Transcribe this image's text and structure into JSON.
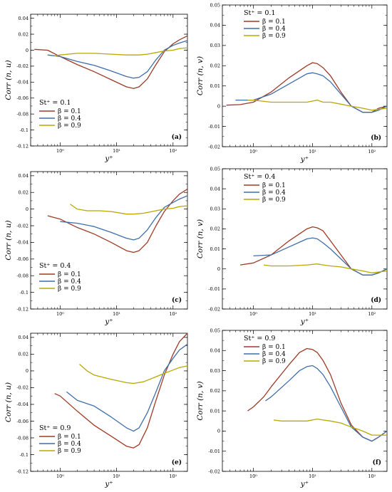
{
  "colors": {
    "red": "#9e3a26",
    "blue": "#3f6ea8",
    "yellow": "#b8a800"
  },
  "chart_data": [
    {
      "id": "a",
      "type": "line",
      "panel_label": "(a)",
      "legend_title": "St⁺ = 0.1",
      "legend_position": "bottom-left",
      "xlabel": "y⁺",
      "ylabel": "Corr (n, u)",
      "xscale": "log",
      "xlim": [
        0.3,
        180
      ],
      "ylim": [
        -0.12,
        0.045
      ],
      "xticks": [
        {
          "v": 1,
          "label": "10⁰"
        },
        {
          "v": 10,
          "label": "10¹"
        },
        {
          "v": 100,
          "label": "10²"
        }
      ],
      "yticks": [
        {
          "v": 0.04,
          "label": "0.04"
        },
        {
          "v": 0.02,
          "label": "0.02"
        },
        {
          "v": 0,
          "label": "0"
        },
        {
          "v": -0.02,
          "label": "-0.02"
        },
        {
          "v": -0.04,
          "label": "-0.04"
        },
        {
          "v": -0.06,
          "label": "-0.06"
        },
        {
          "v": -0.08,
          "label": "-0.08"
        },
        {
          "v": -0.1,
          "label": "-0.1"
        },
        {
          "v": -0.12,
          "label": "-0.12"
        }
      ],
      "series": [
        {
          "name": "β = 0.1",
          "color": "red",
          "x": [
            0.35,
            0.6,
            1,
            2,
            4,
            8,
            15,
            20,
            25,
            35,
            50,
            70,
            100,
            130,
            180
          ],
          "y": [
            0.001,
            0.0,
            -0.008,
            -0.018,
            -0.027,
            -0.037,
            -0.046,
            -0.048,
            -0.046,
            -0.036,
            -0.018,
            -0.002,
            0.008,
            0.013,
            0.018
          ]
        },
        {
          "name": "β = 0.4",
          "color": "blue",
          "x": [
            0.6,
            1,
            2,
            4,
            8,
            15,
            20,
            25,
            35,
            50,
            70,
            100,
            130,
            180
          ],
          "y": [
            -0.006,
            -0.008,
            -0.014,
            -0.019,
            -0.026,
            -0.033,
            -0.035,
            -0.034,
            -0.027,
            -0.012,
            0.0,
            0.006,
            0.009,
            0.012
          ]
        },
        {
          "name": "β = 0.9",
          "color": "yellow",
          "x": [
            0.8,
            1,
            2,
            4,
            8,
            15,
            20,
            25,
            35,
            50,
            70,
            100,
            130,
            180
          ],
          "y": [
            -0.007,
            -0.006,
            -0.004,
            -0.004,
            -0.005,
            -0.006,
            -0.006,
            -0.006,
            -0.005,
            -0.003,
            -0.001,
            0.0,
            0.002,
            0.003
          ]
        }
      ]
    },
    {
      "id": "b",
      "type": "line",
      "panel_label": "(b)",
      "legend_title": "St⁺ = 0.1",
      "legend_position": "top-left",
      "xlabel": "y⁺",
      "ylabel": "Corr (n, v)",
      "xscale": "log",
      "xlim": [
        0.3,
        180
      ],
      "ylim": [
        -0.02,
        0.05
      ],
      "xticks": [
        {
          "v": 1,
          "label": "10⁰"
        },
        {
          "v": 10,
          "label": "10¹"
        },
        {
          "v": 100,
          "label": "10²"
        }
      ],
      "yticks": [
        {
          "v": 0.05,
          "label": "0.05"
        },
        {
          "v": 0.04,
          "label": "0.04"
        },
        {
          "v": 0.03,
          "label": "0.03"
        },
        {
          "v": 0.02,
          "label": "0.02"
        },
        {
          "v": 0.01,
          "label": "0.01"
        },
        {
          "v": 0,
          "label": "0"
        },
        {
          "v": -0.01,
          "label": "-0.01"
        },
        {
          "v": -0.02,
          "label": "-0.02"
        }
      ],
      "series": [
        {
          "name": "β = 0.1",
          "color": "red",
          "x": [
            0.35,
            0.6,
            1,
            2,
            4,
            8,
            10,
            12,
            15,
            20,
            30,
            45,
            70,
            100,
            130,
            180
          ],
          "y": [
            0.0005,
            0.0008,
            0.002,
            0.007,
            0.014,
            0.02,
            0.0215,
            0.021,
            0.019,
            0.015,
            0.007,
            0.0,
            -0.003,
            -0.003,
            -0.001,
            0.0
          ]
        },
        {
          "name": "β = 0.4",
          "color": "blue",
          "x": [
            0.5,
            1,
            2,
            4,
            8,
            10,
            12,
            15,
            20,
            30,
            45,
            70,
            100,
            130,
            180
          ],
          "y": [
            0.003,
            0.003,
            0.006,
            0.011,
            0.016,
            0.0165,
            0.016,
            0.015,
            0.012,
            0.006,
            0.0,
            -0.003,
            -0.003,
            -0.002,
            0.0
          ]
        },
        {
          "name": "β = 0.9",
          "color": "yellow",
          "x": [
            0.8,
            1,
            2,
            4,
            8,
            12,
            15,
            20,
            30,
            45,
            70,
            100,
            180
          ],
          "y": [
            0.003,
            0.003,
            0.002,
            0.002,
            0.002,
            0.003,
            0.002,
            0.002,
            0.001,
            0.0,
            -0.001,
            -0.002,
            -0.001
          ]
        }
      ]
    },
    {
      "id": "c",
      "type": "line",
      "panel_label": "(c)",
      "legend_title": "St⁺ = 0.4",
      "legend_position": "bottom-left",
      "xlabel": "y⁺",
      "ylabel": "Corr (n, u)",
      "xscale": "log",
      "xlim": [
        0.3,
        180
      ],
      "ylim": [
        -0.12,
        0.045
      ],
      "xticks": [
        {
          "v": 1,
          "label": "10⁰"
        },
        {
          "v": 10,
          "label": "10¹"
        },
        {
          "v": 100,
          "label": "10²"
        }
      ],
      "yticks": [
        {
          "v": 0.04,
          "label": "0.04"
        },
        {
          "v": 0.02,
          "label": "0.02"
        },
        {
          "v": 0,
          "label": "0"
        },
        {
          "v": -0.02,
          "label": "-0.02"
        },
        {
          "v": -0.04,
          "label": "-0.04"
        },
        {
          "v": -0.06,
          "label": "-0.06"
        },
        {
          "v": -0.08,
          "label": "-0.08"
        },
        {
          "v": -0.1,
          "label": "-0.1"
        },
        {
          "v": -0.12,
          "label": "-0.12"
        }
      ],
      "series": [
        {
          "name": "β = 0.1",
          "color": "red",
          "x": [
            0.6,
            1,
            2,
            4,
            8,
            15,
            20,
            25,
            35,
            50,
            70,
            100,
            130,
            180
          ],
          "y": [
            -0.008,
            -0.012,
            -0.022,
            -0.03,
            -0.04,
            -0.05,
            -0.052,
            -0.05,
            -0.04,
            -0.02,
            -0.003,
            0.01,
            0.018,
            0.024
          ]
        },
        {
          "name": "β = 0.4",
          "color": "blue",
          "x": [
            1,
            2,
            4,
            8,
            15,
            20,
            25,
            35,
            50,
            70,
            100,
            130,
            180
          ],
          "y": [
            -0.015,
            -0.017,
            -0.021,
            -0.028,
            -0.035,
            -0.037,
            -0.035,
            -0.025,
            -0.01,
            0.002,
            0.008,
            0.012,
            0.016
          ]
        },
        {
          "name": "β = 0.9",
          "color": "yellow",
          "x": [
            1.5,
            2,
            3,
            5,
            8,
            15,
            20,
            30,
            50,
            70,
            100,
            130,
            180
          ],
          "y": [
            0.006,
            0.0,
            -0.002,
            -0.002,
            -0.003,
            -0.006,
            -0.006,
            -0.005,
            -0.002,
            0.0,
            0.001,
            0.003,
            0.004
          ]
        }
      ]
    },
    {
      "id": "d",
      "type": "line",
      "panel_label": "(d)",
      "legend_title": "St⁺ = 0.4",
      "legend_position": "top-left",
      "xlabel": "y⁺",
      "ylabel": "Corr (n, v)",
      "xscale": "log",
      "xlim": [
        0.3,
        180
      ],
      "ylim": [
        -0.02,
        0.05
      ],
      "xticks": [
        {
          "v": 1,
          "label": "10⁰"
        },
        {
          "v": 10,
          "label": "10¹"
        },
        {
          "v": 100,
          "label": "10²"
        }
      ],
      "yticks": [
        {
          "v": 0.05,
          "label": "0.05"
        },
        {
          "v": 0.04,
          "label": "0.04"
        },
        {
          "v": 0.03,
          "label": "0.03"
        },
        {
          "v": 0.02,
          "label": "0.02"
        },
        {
          "v": 0.01,
          "label": "0.01"
        },
        {
          "v": 0,
          "label": "0"
        },
        {
          "v": -0.01,
          "label": "-0.01"
        },
        {
          "v": -0.02,
          "label": "-0.02"
        }
      ],
      "series": [
        {
          "name": "β = 0.1",
          "color": "red",
          "x": [
            0.6,
            1,
            2,
            4,
            8,
            10,
            12,
            15,
            20,
            30,
            45,
            70,
            100,
            130,
            180
          ],
          "y": [
            0.002,
            0.003,
            0.007,
            0.014,
            0.02,
            0.021,
            0.0205,
            0.019,
            0.014,
            0.007,
            0.0,
            -0.003,
            -0.003,
            -0.002,
            0.0
          ]
        },
        {
          "name": "β = 0.4",
          "color": "blue",
          "x": [
            1,
            2,
            4,
            8,
            10,
            12,
            15,
            20,
            30,
            45,
            70,
            100,
            130,
            180
          ],
          "y": [
            0.0065,
            0.007,
            0.011,
            0.015,
            0.0155,
            0.015,
            0.013,
            0.01,
            0.005,
            0.0,
            -0.003,
            -0.003,
            -0.002,
            0.0
          ]
        },
        {
          "name": "β = 0.9",
          "color": "yellow",
          "x": [
            1.5,
            2,
            4,
            8,
            12,
            15,
            20,
            30,
            45,
            70,
            100,
            180
          ],
          "y": [
            0.002,
            0.0015,
            0.0015,
            0.002,
            0.0025,
            0.002,
            0.0015,
            0.001,
            0.0,
            -0.001,
            -0.002,
            -0.001
          ]
        }
      ]
    },
    {
      "id": "e",
      "type": "line",
      "panel_label": "(e)",
      "legend_title": "St⁺ = 0.9",
      "legend_position": "bottom-left",
      "xlabel": "y⁺",
      "ylabel": "Corr (n, u)",
      "xscale": "log",
      "xlim": [
        0.3,
        180
      ],
      "ylim": [
        -0.12,
        0.045
      ],
      "xticks": [
        {
          "v": 1,
          "label": "10⁰"
        },
        {
          "v": 10,
          "label": "10¹"
        },
        {
          "v": 100,
          "label": "10²"
        }
      ],
      "yticks": [
        {
          "v": 0.04,
          "label": "0.04"
        },
        {
          "v": 0.02,
          "label": "0.02"
        },
        {
          "v": 0,
          "label": "0"
        },
        {
          "v": -0.02,
          "label": "-0.02"
        },
        {
          "v": -0.04,
          "label": "-0.04"
        },
        {
          "v": -0.06,
          "label": "-0.06"
        },
        {
          "v": -0.08,
          "label": "-0.08"
        },
        {
          "v": -0.1,
          "label": "-0.1"
        },
        {
          "v": -0.12,
          "label": "-0.12"
        }
      ],
      "series": [
        {
          "name": "β = 0.1",
          "color": "red",
          "x": [
            0.8,
            1,
            2,
            4,
            8,
            15,
            20,
            25,
            35,
            50,
            70,
            100,
            130,
            180
          ],
          "y": [
            -0.027,
            -0.03,
            -0.048,
            -0.065,
            -0.078,
            -0.09,
            -0.092,
            -0.088,
            -0.068,
            -0.035,
            -0.005,
            0.02,
            0.035,
            0.045
          ]
        },
        {
          "name": "β = 0.4",
          "color": "blue",
          "x": [
            1.3,
            2,
            4,
            8,
            15,
            20,
            25,
            35,
            50,
            70,
            100,
            130,
            180
          ],
          "y": [
            -0.025,
            -0.035,
            -0.042,
            -0.055,
            -0.068,
            -0.072,
            -0.068,
            -0.05,
            -0.025,
            0.0,
            0.015,
            0.025,
            0.032
          ]
        },
        {
          "name": "β = 0.9",
          "color": "yellow",
          "x": [
            2.2,
            3,
            4,
            8,
            15,
            20,
            30,
            50,
            70,
            100,
            130,
            180
          ],
          "y": [
            0.008,
            0.0,
            -0.005,
            -0.01,
            -0.014,
            -0.015,
            -0.013,
            -0.007,
            -0.003,
            0.001,
            0.004,
            0.006
          ]
        }
      ]
    },
    {
      "id": "f",
      "type": "line",
      "panel_label": "(f)",
      "legend_title": "St⁺ = 0.9",
      "legend_position": "top-left",
      "xlabel": "y⁺",
      "ylabel": "Corr (n, v)",
      "xscale": "log",
      "xlim": [
        0.3,
        180
      ],
      "ylim": [
        -0.02,
        0.05
      ],
      "xticks": [
        {
          "v": 1,
          "label": "10⁰"
        },
        {
          "v": 10,
          "label": "10¹"
        },
        {
          "v": 100,
          "label": "10²"
        }
      ],
      "yticks": [
        {
          "v": 0.05,
          "label": "0.05"
        },
        {
          "v": 0.04,
          "label": "0.04"
        },
        {
          "v": 0.03,
          "label": "0.03"
        },
        {
          "v": 0.02,
          "label": "0.02"
        },
        {
          "v": 0.01,
          "label": "0.01"
        },
        {
          "v": 0,
          "label": "0"
        },
        {
          "v": -0.01,
          "label": "-0.01"
        },
        {
          "v": -0.02,
          "label": "-0.02"
        }
      ],
      "series": [
        {
          "name": "β = 0.1",
          "color": "red",
          "x": [
            0.8,
            1,
            1.5,
            2,
            4,
            6,
            8,
            10,
            12,
            15,
            20,
            30,
            45,
            70,
            100,
            130,
            180
          ],
          "y": [
            0.01,
            0.012,
            0.017,
            0.022,
            0.033,
            0.039,
            0.041,
            0.0405,
            0.039,
            0.035,
            0.028,
            0.014,
            0.003,
            -0.003,
            -0.005,
            -0.003,
            0.0
          ]
        },
        {
          "name": "β = 0.4",
          "color": "blue",
          "x": [
            1.6,
            2,
            4,
            6,
            8,
            10,
            12,
            15,
            20,
            30,
            45,
            70,
            100,
            130,
            180
          ],
          "y": [
            0.015,
            0.017,
            0.025,
            0.03,
            0.032,
            0.0325,
            0.031,
            0.028,
            0.022,
            0.012,
            0.002,
            -0.003,
            -0.005,
            -0.003,
            0.0
          ]
        },
        {
          "name": "β = 0.9",
          "color": "yellow",
          "x": [
            2.2,
            3,
            5,
            8,
            12,
            15,
            20,
            30,
            45,
            70,
            100,
            180
          ],
          "y": [
            0.0055,
            0.005,
            0.005,
            0.005,
            0.006,
            0.0055,
            0.005,
            0.004,
            0.002,
            0.0,
            -0.002,
            -0.002
          ]
        }
      ]
    }
  ]
}
